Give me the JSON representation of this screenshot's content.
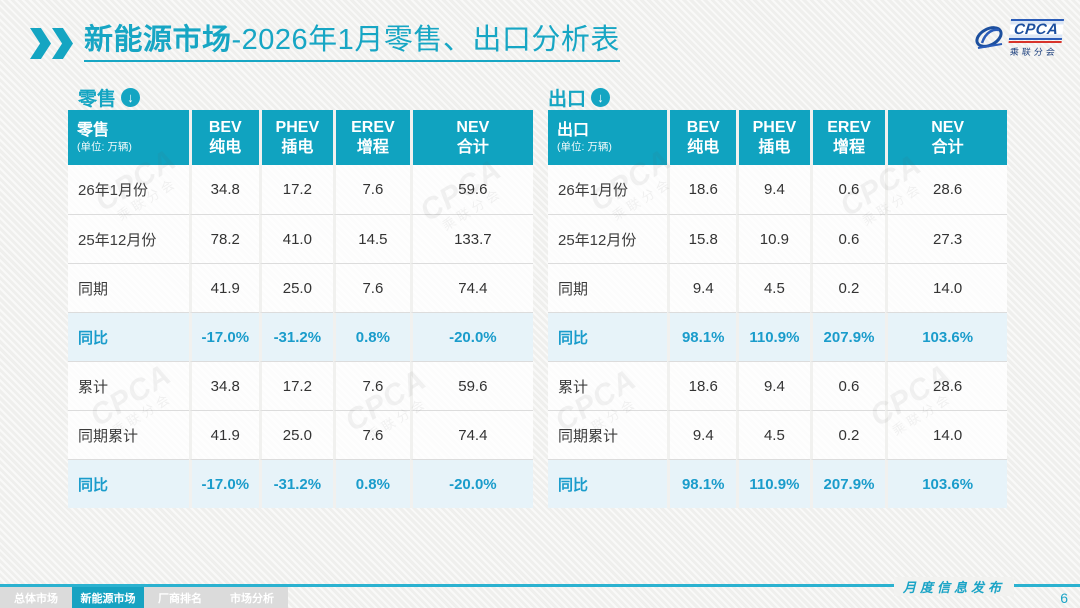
{
  "header": {
    "title_bold": "新能源市场",
    "title_rest": "-2026年1月零售、出口分析表",
    "logo": {
      "text": "CPCA",
      "subtext": "乘联分会"
    }
  },
  "icons": {
    "section_arrow": "↓"
  },
  "tables": [
    {
      "section_label": "零售",
      "corner_label": "零售",
      "unit": "(单位: 万辆)",
      "columns": [
        {
          "en": "BEV",
          "cn": "纯电"
        },
        {
          "en": "PHEV",
          "cn": "插电"
        },
        {
          "en": "EREV",
          "cn": "增程"
        },
        {
          "en": "NEV",
          "cn": "合计"
        }
      ],
      "rows": [
        {
          "label": "26年1月份",
          "values": [
            "34.8",
            "17.2",
            "7.6",
            "59.6"
          ],
          "highlight": false
        },
        {
          "label": "25年12月份",
          "values": [
            "78.2",
            "41.0",
            "14.5",
            "133.7"
          ],
          "highlight": false
        },
        {
          "label": "同期",
          "values": [
            "41.9",
            "25.0",
            "7.6",
            "74.4"
          ],
          "highlight": false
        },
        {
          "label": "同比",
          "values": [
            "-17.0%",
            "-31.2%",
            "0.8%",
            "-20.0%"
          ],
          "highlight": true
        },
        {
          "label": "累计",
          "values": [
            "34.8",
            "17.2",
            "7.6",
            "59.6"
          ],
          "highlight": false
        },
        {
          "label": "同期累计",
          "values": [
            "41.9",
            "25.0",
            "7.6",
            "74.4"
          ],
          "highlight": false
        },
        {
          "label": "同比",
          "values": [
            "-17.0%",
            "-31.2%",
            "0.8%",
            "-20.0%"
          ],
          "highlight": true
        }
      ]
    },
    {
      "section_label": "出口",
      "corner_label": "出口",
      "unit": "(单位: 万辆)",
      "columns": [
        {
          "en": "BEV",
          "cn": "纯电"
        },
        {
          "en": "PHEV",
          "cn": "插电"
        },
        {
          "en": "EREV",
          "cn": "增程"
        },
        {
          "en": "NEV",
          "cn": "合计"
        }
      ],
      "rows": [
        {
          "label": "26年1月份",
          "values": [
            "18.6",
            "9.4",
            "0.6",
            "28.6"
          ],
          "highlight": false
        },
        {
          "label": "25年12月份",
          "values": [
            "15.8",
            "10.9",
            "0.6",
            "27.3"
          ],
          "highlight": false
        },
        {
          "label": "同期",
          "values": [
            "9.4",
            "4.5",
            "0.2",
            "14.0"
          ],
          "highlight": false
        },
        {
          "label": "同比",
          "values": [
            "98.1%",
            "110.9%",
            "207.9%",
            "103.6%"
          ],
          "highlight": true
        },
        {
          "label": "累计",
          "values": [
            "18.6",
            "9.4",
            "0.6",
            "28.6"
          ],
          "highlight": false
        },
        {
          "label": "同期累计",
          "values": [
            "9.4",
            "4.5",
            "0.2",
            "14.0"
          ],
          "highlight": false
        },
        {
          "label": "同比",
          "values": [
            "98.1%",
            "110.9%",
            "207.9%",
            "103.6%"
          ],
          "highlight": true
        }
      ]
    }
  ],
  "watermark": {
    "line1": "CPCA",
    "line2": "乘联分会"
  },
  "footer": {
    "tabs": [
      {
        "label": "总体市场",
        "active": false
      },
      {
        "label": "新能源市场",
        "active": true
      },
      {
        "label": "厂商排名",
        "active": false
      },
      {
        "label": "市场分析",
        "active": false
      }
    ],
    "publication": "月度信息发布",
    "page_number": "6"
  },
  "colors": {
    "teal_header": "#10a3c0",
    "title_teal": "#17a6c4",
    "highlight_text": "#1a9ccb",
    "highlight_bg": "#e7f3f9",
    "footer_line": "#2bb2d0",
    "tab_inactive_bg": "#dbdbdb",
    "logo_blue": "#1c4f9e",
    "logo_red": "#d8342a"
  }
}
